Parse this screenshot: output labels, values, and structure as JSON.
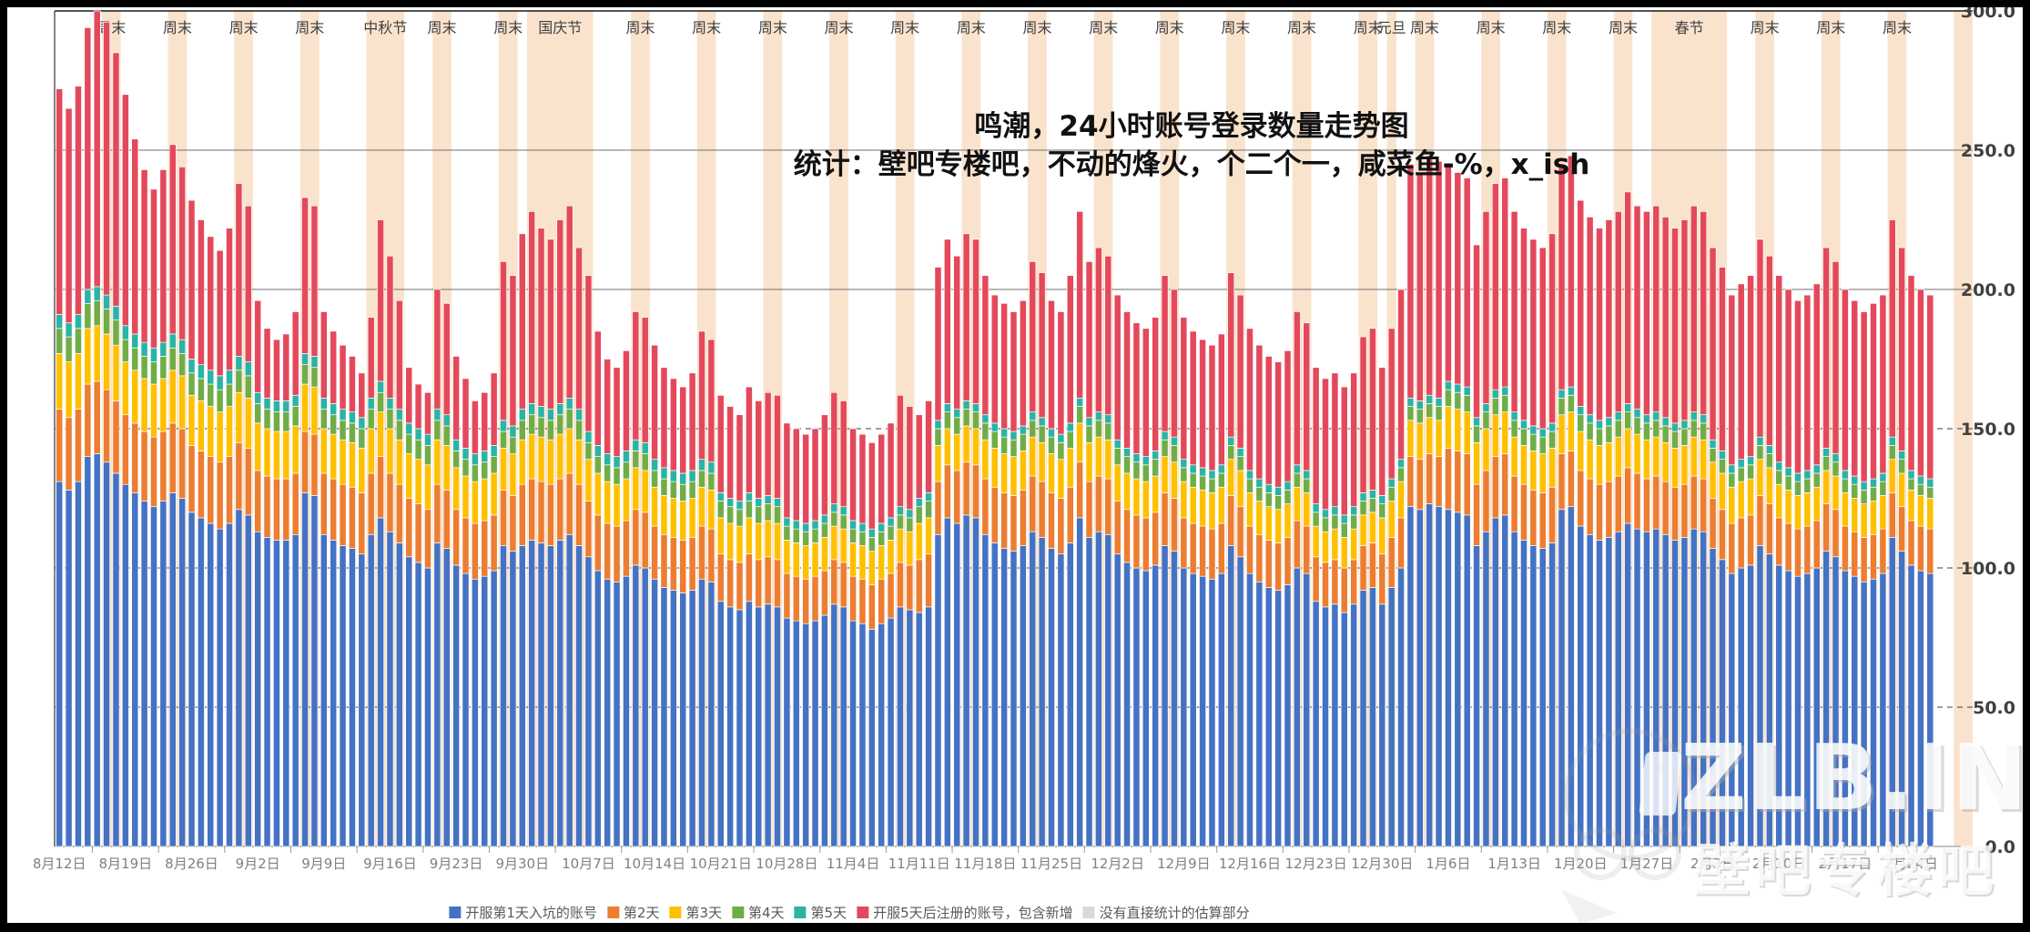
{
  "frame_color": "#000000",
  "background_color": "#ffffff",
  "chart_data": {
    "type": "bar",
    "subtype": "stacked-daily-bars",
    "title_line1": "鸣潮，24小时账号登录数量走势图",
    "title_line2": "统计：壁吧专楼吧，不动的烽火，个二个一，咸菜鱼-%，x_ish",
    "ylim": [
      0,
      300
    ],
    "y_tick_labels": [
      "300.0",
      "250.0",
      "200.0",
      "150.0",
      "100.0",
      "50.0",
      "0.0"
    ],
    "x_tick_labels": [
      "8月12日",
      "8月19日",
      "8月26日",
      "9月2日",
      "9月9日",
      "9月16日",
      "9月23日",
      "9月30日",
      "10月7日",
      "10月14日",
      "10月21日",
      "10月28日",
      "11月4日",
      "11月11日",
      "11月18日",
      "11月25日",
      "12月2日",
      "12月9日",
      "12月16日",
      "12月23日",
      "12月30日",
      "1月6日",
      "1月13日",
      "1月20日",
      "1月27日",
      "2月3日",
      "2月10日",
      "2月17日",
      "2月24日"
    ],
    "days": 199,
    "band_color": "#FAE3CD",
    "bands": [
      {
        "d": 5,
        "n": 2,
        "label": "周末"
      },
      {
        "d": 12,
        "n": 2,
        "label": "周末"
      },
      {
        "d": 19,
        "n": 2,
        "label": "周末"
      },
      {
        "d": 26,
        "n": 2,
        "label": "周末"
      },
      {
        "d": 33,
        "n": 4,
        "label": "中秋节"
      },
      {
        "d": 40,
        "n": 2,
        "label": "周末"
      },
      {
        "d": 47,
        "n": 2,
        "label": "周末"
      },
      {
        "d": 50,
        "n": 7,
        "label": "国庆节"
      },
      {
        "d": 61,
        "n": 2,
        "label": "周末"
      },
      {
        "d": 68,
        "n": 2,
        "label": "周末"
      },
      {
        "d": 75,
        "n": 2,
        "label": "周末"
      },
      {
        "d": 82,
        "n": 2,
        "label": "周末"
      },
      {
        "d": 89,
        "n": 2,
        "label": "周末"
      },
      {
        "d": 96,
        "n": 2,
        "label": "周末"
      },
      {
        "d": 103,
        "n": 2,
        "label": "周末"
      },
      {
        "d": 110,
        "n": 2,
        "label": "周末"
      },
      {
        "d": 117,
        "n": 2,
        "label": "周末"
      },
      {
        "d": 124,
        "n": 2,
        "label": "周末"
      },
      {
        "d": 131,
        "n": 2,
        "label": "周末"
      },
      {
        "d": 138,
        "n": 2,
        "label": "周末"
      },
      {
        "d": 141,
        "n": 1,
        "label": "元旦"
      },
      {
        "d": 144,
        "n": 2,
        "label": "周末"
      },
      {
        "d": 151,
        "n": 2,
        "label": "周末"
      },
      {
        "d": 158,
        "n": 2,
        "label": "周末"
      },
      {
        "d": 165,
        "n": 2,
        "label": "周末"
      },
      {
        "d": 169,
        "n": 8,
        "label": "春节"
      },
      {
        "d": 180,
        "n": 2,
        "label": "周末"
      },
      {
        "d": 187,
        "n": 2,
        "label": "周末"
      },
      {
        "d": 194,
        "n": 2,
        "label": "周末"
      },
      {
        "d": 201,
        "n": 2,
        "label": ""
      }
    ],
    "series_colors": {
      "day1": "#4472C4",
      "day2": "#ED7D31",
      "day3": "#FFC000",
      "day4": "#70AD47",
      "day5": "#2BB3A6",
      "day5plus": "#E4495B",
      "estimated": "#D9D9D9"
    },
    "daily_total": [
      272,
      265,
      273,
      294,
      300,
      296,
      285,
      270,
      254,
      243,
      236,
      243,
      252,
      244,
      232,
      225,
      219,
      214,
      222,
      238,
      230,
      196,
      186,
      182,
      184,
      192,
      233,
      230,
      192,
      185,
      180,
      176,
      170,
      190,
      225,
      212,
      196,
      172,
      166,
      163,
      200,
      195,
      176,
      168,
      160,
      163,
      170,
      210,
      205,
      220,
      228,
      222,
      218,
      225,
      230,
      215,
      205,
      185,
      175,
      172,
      178,
      192,
      190,
      180,
      172,
      168,
      165,
      170,
      185,
      182,
      162,
      158,
      155,
      165,
      160,
      163,
      162,
      152,
      150,
      148,
      150,
      155,
      163,
      160,
      150,
      148,
      145,
      148,
      152,
      162,
      158,
      155,
      160,
      208,
      218,
      212,
      220,
      218,
      205,
      198,
      195,
      192,
      196,
      210,
      206,
      196,
      192,
      205,
      228,
      210,
      215,
      212,
      198,
      192,
      188,
      186,
      190,
      205,
      200,
      190,
      185,
      182,
      180,
      184,
      206,
      198,
      186,
      180,
      176,
      174,
      178,
      192,
      188,
      172,
      168,
      170,
      165,
      170,
      183,
      186,
      172,
      186,
      200,
      245,
      242,
      248,
      246,
      244,
      242,
      240,
      216,
      228,
      238,
      240,
      228,
      222,
      218,
      215,
      220,
      245,
      248,
      232,
      226,
      222,
      225,
      228,
      235,
      230,
      228,
      230,
      226,
      222,
      225,
      230,
      228,
      215,
      208,
      198,
      202,
      205,
      218,
      212,
      205,
      200,
      196,
      198,
      202,
      215,
      210,
      200,
      196,
      192,
      195,
      198,
      225,
      215,
      205,
      200,
      198
    ],
    "daily_day1": [
      131,
      128,
      131,
      140,
      141,
      138,
      134,
      130,
      127,
      124,
      122,
      124,
      127,
      125,
      120,
      118,
      116,
      114,
      116,
      121,
      119,
      113,
      111,
      110,
      110,
      112,
      127,
      126,
      112,
      110,
      108,
      107,
      105,
      112,
      118,
      113,
      109,
      104,
      102,
      100,
      109,
      107,
      101,
      98,
      96,
      97,
      99,
      108,
      106,
      108,
      110,
      109,
      108,
      110,
      112,
      108,
      104,
      99,
      96,
      95,
      97,
      101,
      100,
      96,
      93,
      92,
      91,
      92,
      96,
      95,
      88,
      86,
      85,
      88,
      86,
      87,
      86,
      82,
      81,
      80,
      81,
      83,
      87,
      86,
      81,
      80,
      78,
      80,
      82,
      86,
      85,
      84,
      86,
      112,
      118,
      116,
      119,
      118,
      112,
      109,
      107,
      106,
      108,
      113,
      111,
      107,
      105,
      109,
      118,
      111,
      113,
      112,
      105,
      102,
      100,
      99,
      101,
      108,
      106,
      100,
      98,
      97,
      96,
      98,
      108,
      104,
      98,
      95,
      93,
      92,
      94,
      100,
      98,
      88,
      86,
      87,
      84,
      87,
      92,
      93,
      87,
      93,
      100,
      122,
      121,
      123,
      122,
      121,
      120,
      119,
      108,
      113,
      118,
      119,
      113,
      110,
      108,
      107,
      109,
      121,
      122,
      115,
      112,
      110,
      111,
      113,
      116,
      114,
      113,
      114,
      112,
      110,
      111,
      114,
      113,
      107,
      103,
      98,
      100,
      101,
      108,
      105,
      101,
      99,
      97,
      98,
      100,
      106,
      104,
      99,
      97,
      95,
      96,
      98,
      111,
      106,
      101,
      99,
      98
    ],
    "weekly_day2": [
      26,
      25,
      24,
      22,
      22,
      21,
      20,
      22,
      20,
      19,
      17,
      16,
      16,
      19,
      20,
      20,
      19,
      18,
      17,
      16,
      18,
      22,
      20,
      20,
      19,
      18,
      17,
      16,
      16
    ],
    "weekly_day3": [
      20,
      19,
      18,
      17,
      16,
      16,
      15,
      16,
      15,
      14,
      13,
      12,
      12,
      13,
      14,
      14,
      13,
      13,
      12,
      11,
      13,
      15,
      14,
      14,
      14,
      13,
      12,
      12,
      11
    ],
    "weekly_day4": [
      9,
      8,
      8,
      7,
      7,
      7,
      6,
      7,
      6,
      6,
      6,
      5,
      5,
      6,
      6,
      6,
      6,
      5,
      5,
      5,
      5,
      6,
      6,
      6,
      6,
      5,
      5,
      5,
      4
    ],
    "weekly_day5": [
      5,
      5,
      5,
      4,
      4,
      4,
      4,
      4,
      4,
      4,
      3,
      3,
      3,
      3,
      3,
      3,
      3,
      3,
      3,
      3,
      3,
      3,
      3,
      3,
      3,
      3,
      3,
      3,
      3
    ],
    "day5plus_is_remainder": true,
    "grid": {
      "solid_levels": [
        250,
        200
      ],
      "dashed_levels": [
        150,
        100,
        50
      ]
    }
  },
  "legend": {
    "items": [
      {
        "label": "开服第1天入坑的账号",
        "color": "#4472C4"
      },
      {
        "label": "第2天",
        "color": "#ED7D31"
      },
      {
        "label": "第3天",
        "color": "#FFC000"
      },
      {
        "label": "第4天",
        "color": "#70AD47"
      },
      {
        "label": "第5天",
        "color": "#2BB3A6"
      },
      {
        "label": "开服5天后注册的账号，包含新增",
        "color": "#E4495B"
      },
      {
        "label": "没有直接统计的估算部分",
        "color": "#D9D9D9"
      }
    ]
  },
  "watermark": {
    "logo_text": "ZLB.INK",
    "sub_text": "壁吧专楼吧"
  }
}
